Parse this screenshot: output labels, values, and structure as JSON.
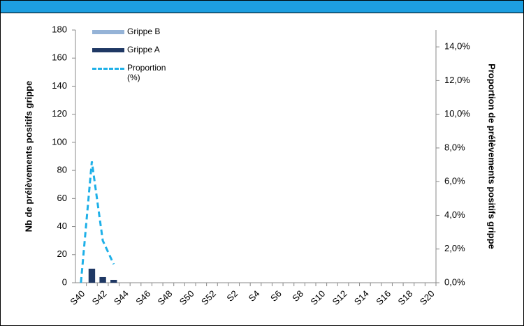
{
  "chart_data": {
    "type": "bar_line",
    "y_label": "Nb de prélèvements positifs grippe",
    "y2_label": "Proportion de prélèvements positifs grippe",
    "categories": [
      "S40",
      null,
      "S42",
      null,
      "S44",
      null,
      "S46",
      null,
      "S48",
      null,
      "S50",
      null,
      "S52",
      null,
      "S2",
      null,
      "S4",
      null,
      "S6",
      null,
      "S8",
      null,
      "S10",
      null,
      "S12",
      null,
      "S14",
      null,
      "S16",
      null,
      "S18",
      null,
      "S20"
    ],
    "series": [
      {
        "name": "Grippe B",
        "type": "bar",
        "color": "#95b3d7",
        "values": [
          0,
          0,
          0,
          0,
          null,
          null,
          null,
          null,
          null,
          null,
          null,
          null,
          null,
          null,
          null,
          null,
          null,
          null,
          null,
          null,
          null,
          null,
          null,
          null,
          null,
          null,
          null,
          null,
          null,
          null,
          null,
          null,
          null
        ]
      },
      {
        "name": "Grippe A",
        "type": "bar",
        "color": "#1f3864",
        "values": [
          0,
          10,
          4,
          2,
          null,
          null,
          null,
          null,
          null,
          null,
          null,
          null,
          null,
          null,
          null,
          null,
          null,
          null,
          null,
          null,
          null,
          null,
          null,
          null,
          null,
          null,
          null,
          null,
          null,
          null,
          null,
          null,
          null
        ]
      },
      {
        "name": "Proportion (%)",
        "type": "line",
        "axis": "y2",
        "color": "#1eb0e8",
        "line_style": "dashed",
        "values": [
          0,
          7.2,
          2.5,
          1.1,
          null,
          null,
          null,
          null,
          null,
          null,
          null,
          null,
          null,
          null,
          null,
          null,
          null,
          null,
          null,
          null,
          null,
          null,
          null,
          null,
          null,
          null,
          null,
          null,
          null,
          null,
          null,
          null,
          null
        ]
      }
    ],
    "stacked": true,
    "ylim": [
      0,
      180
    ],
    "yticks": [
      0,
      20,
      40,
      60,
      80,
      100,
      120,
      140,
      160,
      180
    ],
    "y2lim": [
      0,
      15
    ],
    "y2ticks": [
      {
        "value": 0,
        "label": "0,0%"
      },
      {
        "value": 2,
        "label": "2,0%"
      },
      {
        "value": 4,
        "label": "4,0%"
      },
      {
        "value": 6,
        "label": "6,0%"
      },
      {
        "value": 8,
        "label": "8,0%"
      },
      {
        "value": 10,
        "label": "10,0%"
      },
      {
        "value": 12,
        "label": "12,0%"
      },
      {
        "value": 14,
        "label": "14,0%"
      }
    ],
    "grid": false
  }
}
